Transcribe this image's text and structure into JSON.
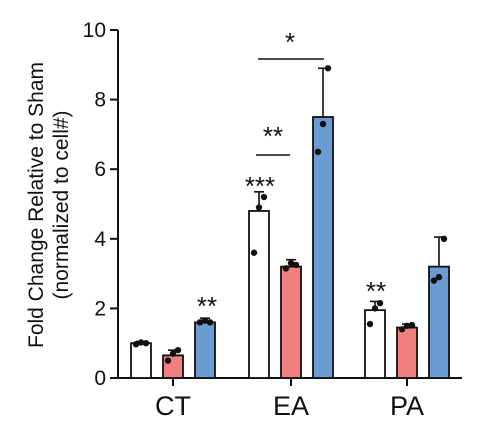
{
  "chart_data": {
    "type": "bar",
    "ylabel_line1": "Fold Change Relative to Sham",
    "ylabel_line2": "(normalized to cell#)",
    "ylim": [
      0,
      10
    ],
    "yticks": [
      0,
      2,
      4,
      6,
      8,
      10
    ],
    "categories": [
      "CT",
      "EA",
      "PA"
    ],
    "series": [
      {
        "color": "#ffffff",
        "values": [
          1.0,
          4.8,
          1.95
        ],
        "error_upper": [
          1.05,
          5.35,
          2.2
        ],
        "points": [
          [
            0.97,
            1.02,
            1.0
          ],
          [
            3.6,
            4.9,
            5.2
          ],
          [
            1.55,
            2.0,
            2.15
          ]
        ]
      },
      {
        "color": "#f08080",
        "values": [
          0.65,
          3.2,
          1.45
        ],
        "error_upper": [
          0.8,
          3.4,
          1.55
        ],
        "points": [
          [
            0.5,
            0.7,
            0.8
          ],
          [
            3.15,
            3.3,
            3.25
          ],
          [
            1.4,
            1.5,
            1.52
          ]
        ]
      },
      {
        "color": "#6a9bd1",
        "values": [
          1.6,
          7.5,
          3.2
        ],
        "error_upper": [
          1.72,
          8.9,
          4.05
        ],
        "points": [
          [
            1.6,
            1.65,
            1.6
          ],
          [
            6.5,
            7.3,
            8.9
          ],
          [
            2.8,
            2.9,
            4.0
          ]
        ]
      }
    ],
    "annotations": {
      "ct_blue": "**",
      "ea_white": "***",
      "ea_bracket_red_blue": "**",
      "ea_bracket_white_blue": "*",
      "pa_white": "**"
    }
  }
}
